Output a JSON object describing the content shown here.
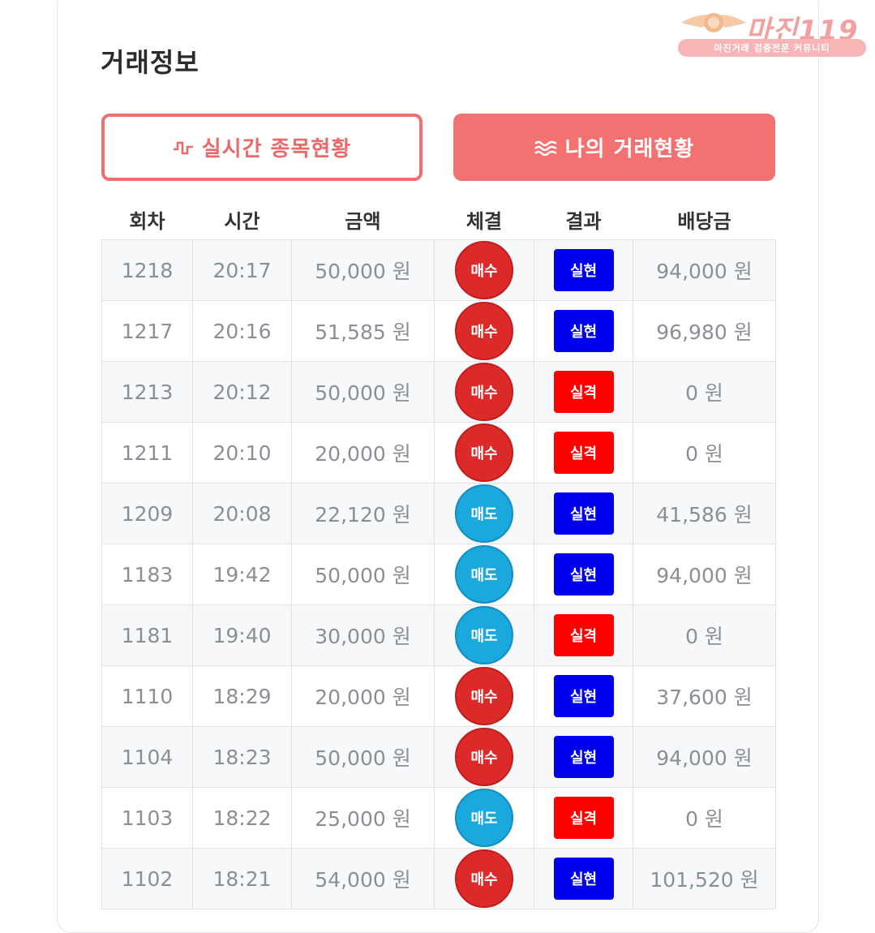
{
  "title": "거래정보",
  "tabs": [
    {
      "label": "실시간 종목현황",
      "icon": "pulse-icon",
      "active": false
    },
    {
      "label": "나의 거래현황",
      "icon": "waves-icon",
      "active": true
    }
  ],
  "columns": [
    "회차",
    "시간",
    "금액",
    "체결",
    "결과",
    "배당금"
  ],
  "rows": [
    {
      "round": "1218",
      "time": "20:17",
      "amount": "50,000 원",
      "side": "매수",
      "side_type": "buy",
      "result": "실현",
      "result_type": "win",
      "payout": "94,000 원"
    },
    {
      "round": "1217",
      "time": "20:16",
      "amount": "51,585 원",
      "side": "매수",
      "side_type": "buy",
      "result": "실현",
      "result_type": "win",
      "payout": "96,980 원"
    },
    {
      "round": "1213",
      "time": "20:12",
      "amount": "50,000 원",
      "side": "매수",
      "side_type": "buy",
      "result": "실격",
      "result_type": "lose",
      "payout": "0 원"
    },
    {
      "round": "1211",
      "time": "20:10",
      "amount": "20,000 원",
      "side": "매수",
      "side_type": "buy",
      "result": "실격",
      "result_type": "lose",
      "payout": "0 원"
    },
    {
      "round": "1209",
      "time": "20:08",
      "amount": "22,120 원",
      "side": "매도",
      "side_type": "sell",
      "result": "실현",
      "result_type": "win",
      "payout": "41,586 원"
    },
    {
      "round": "1183",
      "time": "19:42",
      "amount": "50,000 원",
      "side": "매도",
      "side_type": "sell",
      "result": "실현",
      "result_type": "win",
      "payout": "94,000 원"
    },
    {
      "round": "1181",
      "time": "19:40",
      "amount": "30,000 원",
      "side": "매도",
      "side_type": "sell",
      "result": "실격",
      "result_type": "lose",
      "payout": "0 원"
    },
    {
      "round": "1110",
      "time": "18:29",
      "amount": "20,000 원",
      "side": "매수",
      "side_type": "buy",
      "result": "실현",
      "result_type": "win",
      "payout": "37,600 원"
    },
    {
      "round": "1104",
      "time": "18:23",
      "amount": "50,000 원",
      "side": "매수",
      "side_type": "buy",
      "result": "실현",
      "result_type": "win",
      "payout": "94,000 원"
    },
    {
      "round": "1103",
      "time": "18:22",
      "amount": "25,000 원",
      "side": "매도",
      "side_type": "sell",
      "result": "실격",
      "result_type": "lose",
      "payout": "0 원"
    },
    {
      "round": "1102",
      "time": "18:21",
      "amount": "54,000 원",
      "side": "매수",
      "side_type": "buy",
      "result": "실현",
      "result_type": "win",
      "payout": "101,520 원"
    }
  ],
  "watermark": {
    "logo_text": "마진119",
    "tagline": "마진거래 검증전문 커뮤니티"
  },
  "colors": {
    "accent": "#f47171",
    "buy": "#dc2a2a",
    "sell": "#1aa8dd",
    "win": "#0000ee",
    "lose": "#ff0000"
  }
}
